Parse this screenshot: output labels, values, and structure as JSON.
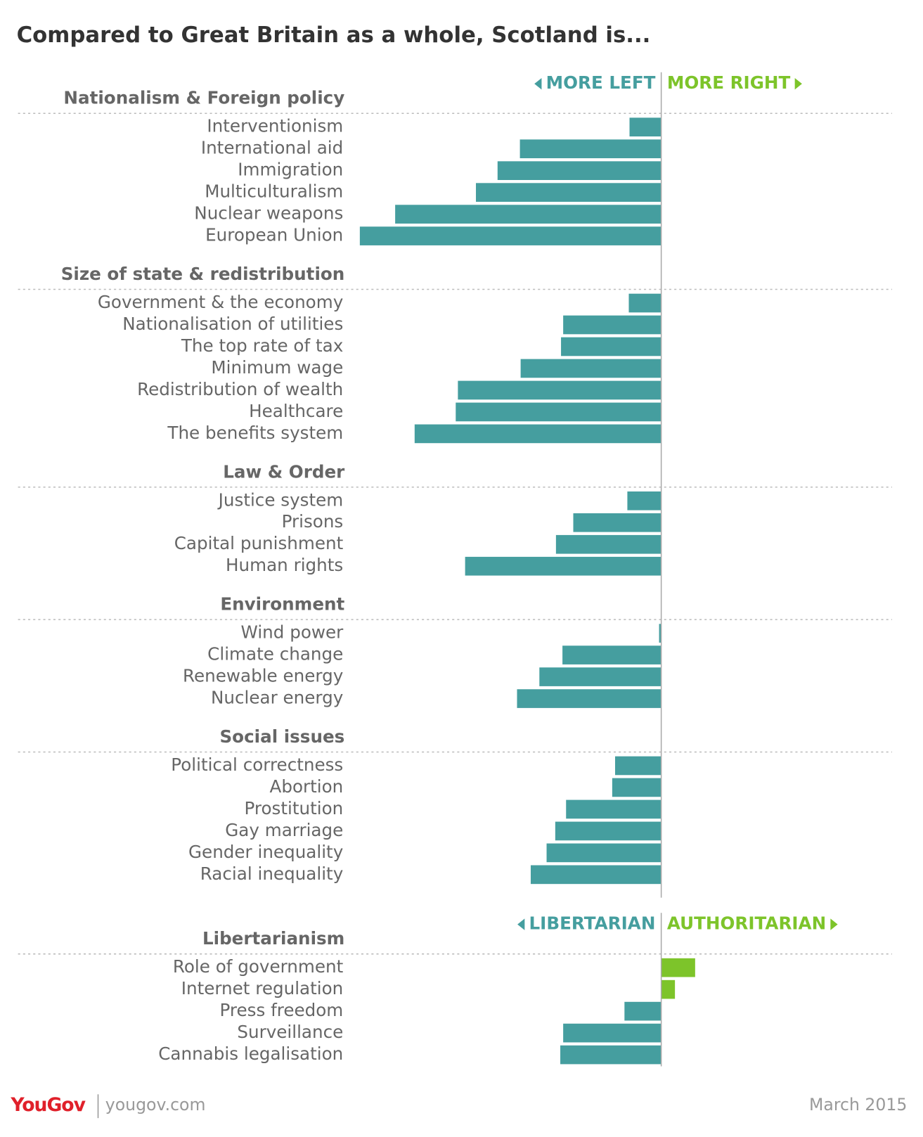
{
  "chart_data": {
    "type": "bar",
    "orientation": "horizontal",
    "title": "Compared to Great Britain as a whole, Scotland is...",
    "xlim": [
      -45,
      32
    ],
    "colors": {
      "negative": "#459e9f",
      "positive": "#7dc42a"
    },
    "groups": [
      {
        "title": "Nationalism & Foreign policy",
        "left_label": "MORE LEFT",
        "right_label": "MORE RIGHT",
        "categories": [
          "Interventionism",
          "International aid",
          "Immigration",
          "Multiculturalism",
          "Nuclear weapons",
          "European Union"
        ],
        "values": [
          -4.4,
          -19.6,
          -22.7,
          -25.7,
          -36.9,
          -41.8
        ]
      },
      {
        "title": "Size of state & redistribution",
        "categories": [
          "Government & the economy",
          "Nationalisation of utilities",
          "The top rate of tax",
          "Minimum wage",
          "Redistribution of wealth",
          "Healthcare",
          "The benefits system"
        ],
        "values": [
          -4.5,
          -13.6,
          -13.9,
          -19.5,
          -28.2,
          -28.5,
          -34.2
        ]
      },
      {
        "title": "Law & Order",
        "categories": [
          "Justice system",
          "Prisons",
          "Capital punishment",
          "Human rights"
        ],
        "values": [
          -4.7,
          -12.2,
          -14.6,
          -27.2
        ]
      },
      {
        "title": "Environment",
        "categories": [
          "Wind power",
          "Climate change",
          "Renewable energy",
          "Nuclear energy"
        ],
        "values": [
          -0.3,
          -13.7,
          -16.9,
          -20.0
        ]
      },
      {
        "title": "Social issues",
        "categories": [
          "Political correctness",
          "Abortion",
          "Prostitution",
          "Gay marriage",
          "Gender inequality",
          "Racial inequality"
        ],
        "values": [
          -6.4,
          -6.8,
          -13.2,
          -14.7,
          -15.9,
          -18.1
        ]
      },
      {
        "title": "Libertarianism",
        "left_label": "LIBERTARIAN",
        "right_label": "AUTHORITARIAN",
        "categories": [
          "Role of government",
          "Internet regulation",
          "Press freedom",
          "Surveillance",
          "Cannabis legalisation"
        ],
        "values": [
          4.7,
          1.9,
          -5.1,
          -13.6,
          -14.0
        ]
      }
    ],
    "footer": {
      "brand": "YouGov",
      "url": "yougov.com",
      "date": "March 2015"
    }
  }
}
